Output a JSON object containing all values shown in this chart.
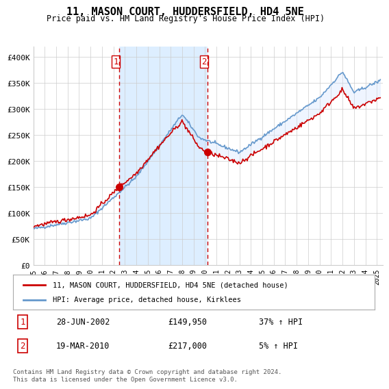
{
  "title": "11, MASON COURT, HUDDERSFIELD, HD4 5NE",
  "subtitle": "Price paid vs. HM Land Registry's House Price Index (HPI)",
  "ylabel_ticks": [
    "£0",
    "£50K",
    "£100K",
    "£150K",
    "£200K",
    "£250K",
    "£300K",
    "£350K",
    "£400K"
  ],
  "ytick_values": [
    0,
    50000,
    100000,
    150000,
    200000,
    250000,
    300000,
    350000,
    400000
  ],
  "ylim": [
    0,
    420000
  ],
  "xlim_start": 1995.0,
  "xlim_end": 2025.5,
  "legend_line1": "11, MASON COURT, HUDDERSFIELD, HD4 5NE (detached house)",
  "legend_line2": "HPI: Average price, detached house, Kirklees",
  "transaction1_date": "28-JUN-2002",
  "transaction1_price": "£149,950",
  "transaction1_hpi": "37% ↑ HPI",
  "transaction1_year": 2002.49,
  "transaction1_value": 149950,
  "transaction2_date": "19-MAR-2010",
  "transaction2_price": "£217,000",
  "transaction2_hpi": "5% ↑ HPI",
  "transaction2_year": 2010.21,
  "transaction2_value": 217000,
  "footer": "Contains HM Land Registry data © Crown copyright and database right 2024.\nThis data is licensed under the Open Government Licence v3.0.",
  "line_color_red": "#cc0000",
  "line_color_blue": "#6699cc",
  "fill_color_blue": "#cce0ff",
  "vline_color": "#cc0000",
  "background_color": "#ffffff",
  "grid_color": "#cccccc",
  "shade_color": "#ddeeff",
  "xticks": [
    1995,
    1996,
    1997,
    1998,
    1999,
    2000,
    2001,
    2002,
    2003,
    2004,
    2005,
    2006,
    2007,
    2008,
    2009,
    2010,
    2011,
    2012,
    2013,
    2014,
    2015,
    2016,
    2017,
    2018,
    2019,
    2020,
    2021,
    2022,
    2023,
    2024,
    2025
  ]
}
